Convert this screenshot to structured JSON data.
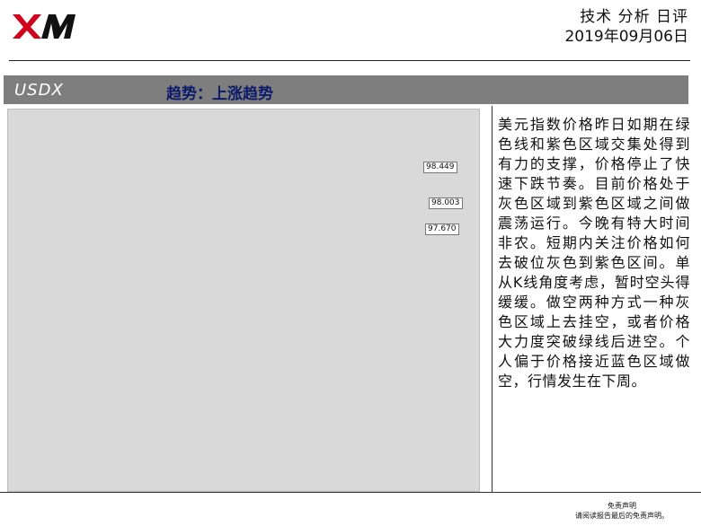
{
  "header": {
    "title": "技术 分析 日评",
    "date": "2019年09月06日"
  },
  "bar": {
    "symbol": "USDX",
    "trend": "趋势：上涨趋势"
  },
  "chart": {
    "price_labels": [
      "98.449",
      "98.003",
      "97.670"
    ]
  },
  "commentary": "美元指数价格昨日如期在绿色线和紫色区域交集处得到有力的支撑，价格停止了快速下跌节奏。目前价格处于灰色区域到紫色区域之间做震荡运行。今晚有特大时间非农。短期内关注价格如何去破位灰色到紫色区间。单从K线角度考虑，暂时空头得缓缓。做空两种方式一种灰色区域上去挂空，或者价格大力度突破绿线后进空。个人偏于价格接近蓝色区域做空，行情发生在下周。",
  "footer": {
    "line1": "免责声明",
    "line2": "请阅读报告最后的免责声明。"
  }
}
